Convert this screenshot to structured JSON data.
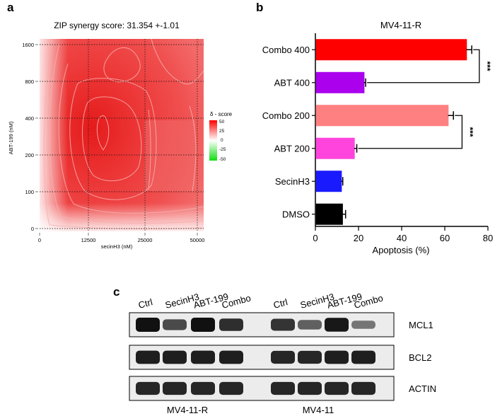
{
  "panels": {
    "a": "a",
    "b": "b",
    "c": "c"
  },
  "colors": {
    "heat_red": "#ee2c2c",
    "heat_green": "#22dd22",
    "bar_combo400": "#ff0000",
    "bar_abt400": "#aa00ee",
    "bar_combo200": "#ff8080",
    "bar_abt200": "#ff44dd",
    "bar_secinh3": "#1a1aff",
    "bar_dmso": "#000000"
  },
  "chart_data": [
    {
      "type": "heatmap",
      "title": "ZIP synergy score: 31.354 +-1.01",
      "xlabel": "secinH3 (nM)",
      "ylabel": "ABT-199 (nM)",
      "x_ticks": [
        "0",
        "12500",
        "25000",
        "50000"
      ],
      "y_ticks": [
        "0",
        "100",
        "200",
        "400",
        "800",
        "1600"
      ],
      "grid": true,
      "legend": {
        "title": "δ - score",
        "position": "right",
        "ticks": [
          "50",
          "25",
          "0",
          "-25",
          "-50"
        ],
        "range": [
          -50,
          50
        ]
      }
    },
    {
      "type": "bar",
      "orientation": "horizontal",
      "title": "MV4-11-R",
      "xlabel": "Apoptosis (%)",
      "xlim": [
        0,
        80
      ],
      "x_ticks": [
        "0",
        "20",
        "40",
        "60",
        "80"
      ],
      "categories": [
        "Combo 400",
        "ABT 400",
        "Combo 200",
        "ABT 200",
        "SecinH3",
        "DMSO"
      ],
      "values": [
        70,
        22.5,
        61.5,
        18,
        12,
        12.5
      ],
      "errors": [
        2.5,
        0.8,
        2.5,
        1.2,
        0.7,
        1.5
      ],
      "significance": [
        {
          "between": [
            "Combo 400",
            "ABT 400"
          ],
          "label": "***"
        },
        {
          "between": [
            "Combo 200",
            "ABT 200"
          ],
          "label": "***"
        }
      ]
    },
    {
      "type": "blot",
      "lane_labels": [
        "Ctrl",
        "SecinH3",
        "ABT-199",
        "Combo",
        "Ctrl",
        "SecinH3",
        "ABT-199",
        "Combo"
      ],
      "row_labels": [
        "MCL1",
        "BCL2",
        "ACTIN"
      ],
      "group_labels": [
        "MV4-11-R",
        "MV4-11"
      ],
      "intensity": [
        [
          1.0,
          0.6,
          1.0,
          0.8,
          0.0,
          0.75,
          0.45,
          0.95,
          0.3
        ],
        [
          0.9,
          0.9,
          0.9,
          0.9,
          0.0,
          0.85,
          0.85,
          0.9,
          0.9
        ],
        [
          0.85,
          0.85,
          0.85,
          0.85,
          0.0,
          0.85,
          0.85,
          0.85,
          0.85
        ]
      ]
    }
  ]
}
